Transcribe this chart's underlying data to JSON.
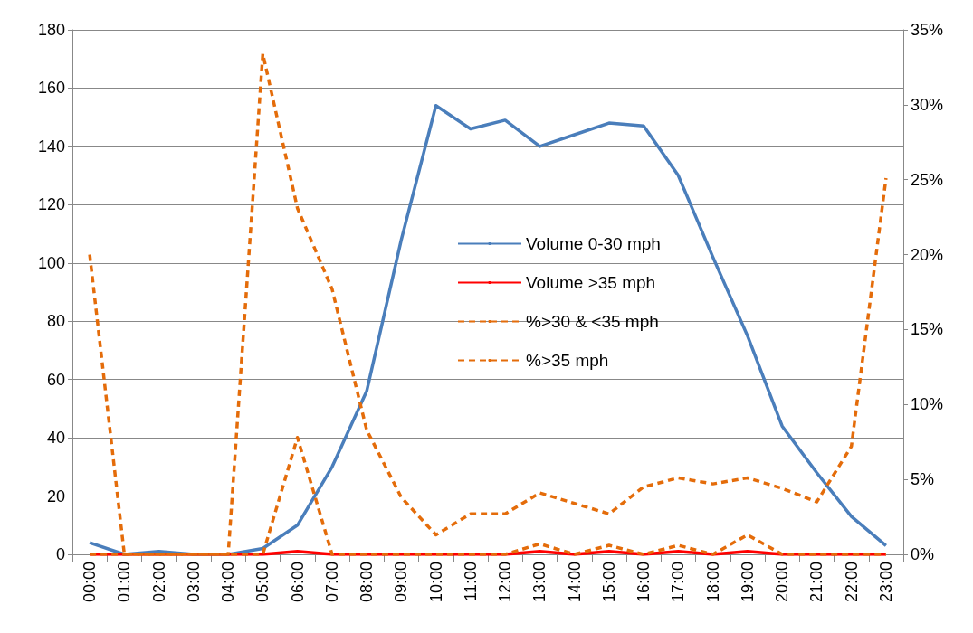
{
  "chart_data": {
    "type": "line",
    "categories": [
      "00:00",
      "01:00",
      "02:00",
      "03:00",
      "04:00",
      "05:00",
      "06:00",
      "07:00",
      "08:00",
      "09:00",
      "10:00",
      "11:00",
      "12:00",
      "13:00",
      "14:00",
      "15:00",
      "16:00",
      "17:00",
      "18:00",
      "19:00",
      "20:00",
      "21:00",
      "22:00",
      "23:00"
    ],
    "series": [
      {
        "name": "Volume 0-30 mph",
        "color": "#4a7ebb",
        "line_style": "solid",
        "values": [
          4,
          0,
          1,
          0,
          0,
          2,
          10,
          30,
          56,
          108,
          154,
          146,
          149,
          140,
          144,
          148,
          147,
          130,
          102,
          75,
          44,
          28,
          13,
          3
        ]
      },
      {
        "name": "Volume >35 mph",
        "color": "#ff0000",
        "line_style": "solid",
        "values": [
          0,
          0,
          0,
          0,
          0,
          0,
          1,
          0,
          0,
          0,
          0,
          0,
          0,
          1,
          0,
          1,
          0,
          1,
          0,
          1,
          0,
          0,
          0,
          0
        ]
      },
      {
        "name": "%>30 & <35 mph",
        "color": "#e46c0a",
        "line_style": "dashed",
        "axis": "y2",
        "values": [
          20,
          0,
          0,
          0,
          0,
          33.4,
          23.1,
          17.7,
          8.3,
          3.8,
          1.3,
          2.7,
          2.7,
          4.1,
          3.4,
          2.7,
          4.5,
          5.1,
          4.7,
          5.1,
          4.4,
          3.5,
          7.2,
          25.1
        ]
      },
      {
        "name": "%>35 mph",
        "color": "#e46c0a",
        "line_style": "dashed",
        "axis": "y2",
        "values": [
          0,
          0,
          0,
          0,
          0,
          0,
          7.8,
          0,
          0,
          0,
          0,
          0,
          0,
          0.7,
          0,
          0.6,
          0,
          0.6,
          0,
          1.3,
          0,
          0,
          0,
          0
        ]
      }
    ],
    "ylim": [
      0,
      180
    ],
    "yticks": [
      0,
      20,
      40,
      60,
      80,
      100,
      120,
      140,
      160,
      180
    ],
    "y2lim": [
      0,
      35
    ],
    "y2ticks": [
      {
        "value": 0,
        "label": "0%"
      },
      {
        "value": 5,
        "label": "5%"
      },
      {
        "value": 10,
        "label": "10%"
      },
      {
        "value": 15,
        "label": "15%"
      },
      {
        "value": 20,
        "label": "20%"
      },
      {
        "value": 25,
        "label": "25%"
      },
      {
        "value": 30,
        "label": "30%"
      },
      {
        "value": 35,
        "label": "35%"
      }
    ],
    "grid": "y",
    "legend": "center",
    "marker": "none"
  }
}
